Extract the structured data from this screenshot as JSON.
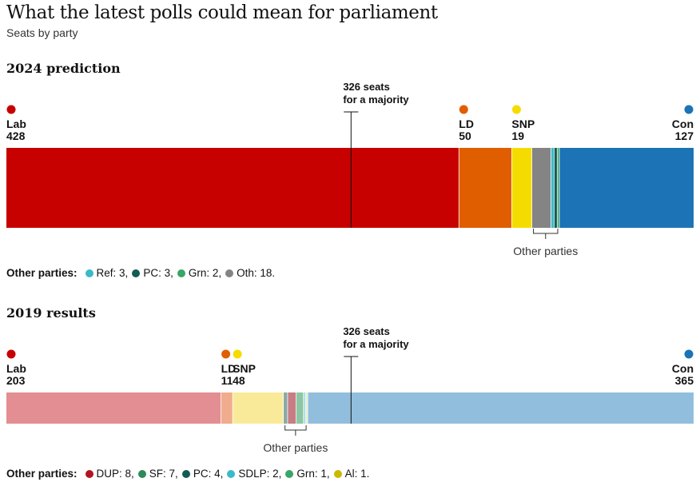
{
  "title": "What the latest polls could mean for parliament",
  "subtitle": "Seats by party",
  "chart_data": [
    {
      "type": "bar",
      "stacked": true,
      "orientation": "horizontal",
      "section_title": "2024 prediction",
      "total_seats": 650,
      "majority_value": 326,
      "majority_label_line1": "326 seats",
      "majority_label_line2": "for a majority",
      "other_parties_label": "Other parties",
      "legend_heading": "Other parties:",
      "series": [
        {
          "name": "Lab",
          "value": 428,
          "color": "#c70000",
          "labelled": true,
          "anchor": "start"
        },
        {
          "name": "LD",
          "value": 50,
          "color": "#e05e00",
          "labelled": true,
          "anchor": "start"
        },
        {
          "name": "SNP",
          "value": 19,
          "color": "#f5dc00",
          "labelled": true,
          "anchor": "start"
        },
        {
          "name": "Oth",
          "value": 18,
          "color": "#848484",
          "labelled": false,
          "other": true
        },
        {
          "name": "Ref",
          "value": 3,
          "color": "#3db9c9",
          "labelled": false,
          "other": true
        },
        {
          "name": "PC",
          "value": 3,
          "color": "#135c56",
          "labelled": false,
          "other": true
        },
        {
          "name": "Grn",
          "value": 2,
          "color": "#39a566",
          "labelled": false,
          "other": true
        },
        {
          "name": "Con",
          "value": 127,
          "color": "#1c73b5",
          "labelled": true,
          "anchor": "end"
        }
      ],
      "legend_items": [
        {
          "name": "Ref",
          "value": "3",
          "color": "#3db9c9"
        },
        {
          "name": "PC",
          "value": "3",
          "color": "#135c56"
        },
        {
          "name": "Grn",
          "value": "2",
          "color": "#39a566"
        },
        {
          "name": "Oth",
          "value": "18",
          "color": "#848484",
          "last": true
        }
      ]
    },
    {
      "type": "bar",
      "stacked": true,
      "orientation": "horizontal",
      "section_title": "2019 results",
      "total_seats": 650,
      "majority_value": 326,
      "majority_label_line1": "326 seats",
      "majority_label_line2": "for a majority",
      "other_parties_label": "Other parties",
      "legend_heading": "Other parties:",
      "series": [
        {
          "name": "Lab",
          "value": 203,
          "color": "#e28e92",
          "labelled": true,
          "anchor": "start",
          "dot_color": "#c70000"
        },
        {
          "name": "LD",
          "value": 11,
          "color": "#f0ac8c",
          "labelled": true,
          "anchor": "start",
          "dot_color": "#e05e00"
        },
        {
          "name": "SNP",
          "value": 48,
          "color": "#f9ea9a",
          "labelled": true,
          "anchor": "start",
          "dot_color": "#f5dc00"
        },
        {
          "name": "PC",
          "value": 4,
          "color": "#8aa8a6",
          "labelled": false,
          "other": true
        },
        {
          "name": "DUP",
          "value": 8,
          "color": "#c67d84",
          "labelled": false,
          "other": true
        },
        {
          "name": "SF",
          "value": 7,
          "color": "#8cc7a3",
          "labelled": false,
          "other": true
        },
        {
          "name": "SDLP",
          "value": 2,
          "color": "#a6dde4",
          "labelled": false,
          "other": true
        },
        {
          "name": "Grn",
          "value": 1,
          "color": "#9ed3a5",
          "labelled": false,
          "other": true
        },
        {
          "name": "Al",
          "value": 1,
          "color": "#e5df9a",
          "labelled": false,
          "other": true
        },
        {
          "name": "Con",
          "value": 365,
          "color": "#92bedd",
          "labelled": true,
          "anchor": "end",
          "dot_color": "#1c73b5"
        }
      ],
      "legend_items": [
        {
          "name": "DUP",
          "value": "8",
          "color": "#b3141f"
        },
        {
          "name": "SF",
          "value": "7",
          "color": "#2e8b57"
        },
        {
          "name": "PC",
          "value": "4",
          "color": "#135c56"
        },
        {
          "name": "SDLP",
          "value": "2",
          "color": "#3db9c9"
        },
        {
          "name": "Grn",
          "value": "1",
          "color": "#39a566"
        },
        {
          "name": "Al",
          "value": "1",
          "color": "#c9b900",
          "last": true
        }
      ]
    }
  ]
}
